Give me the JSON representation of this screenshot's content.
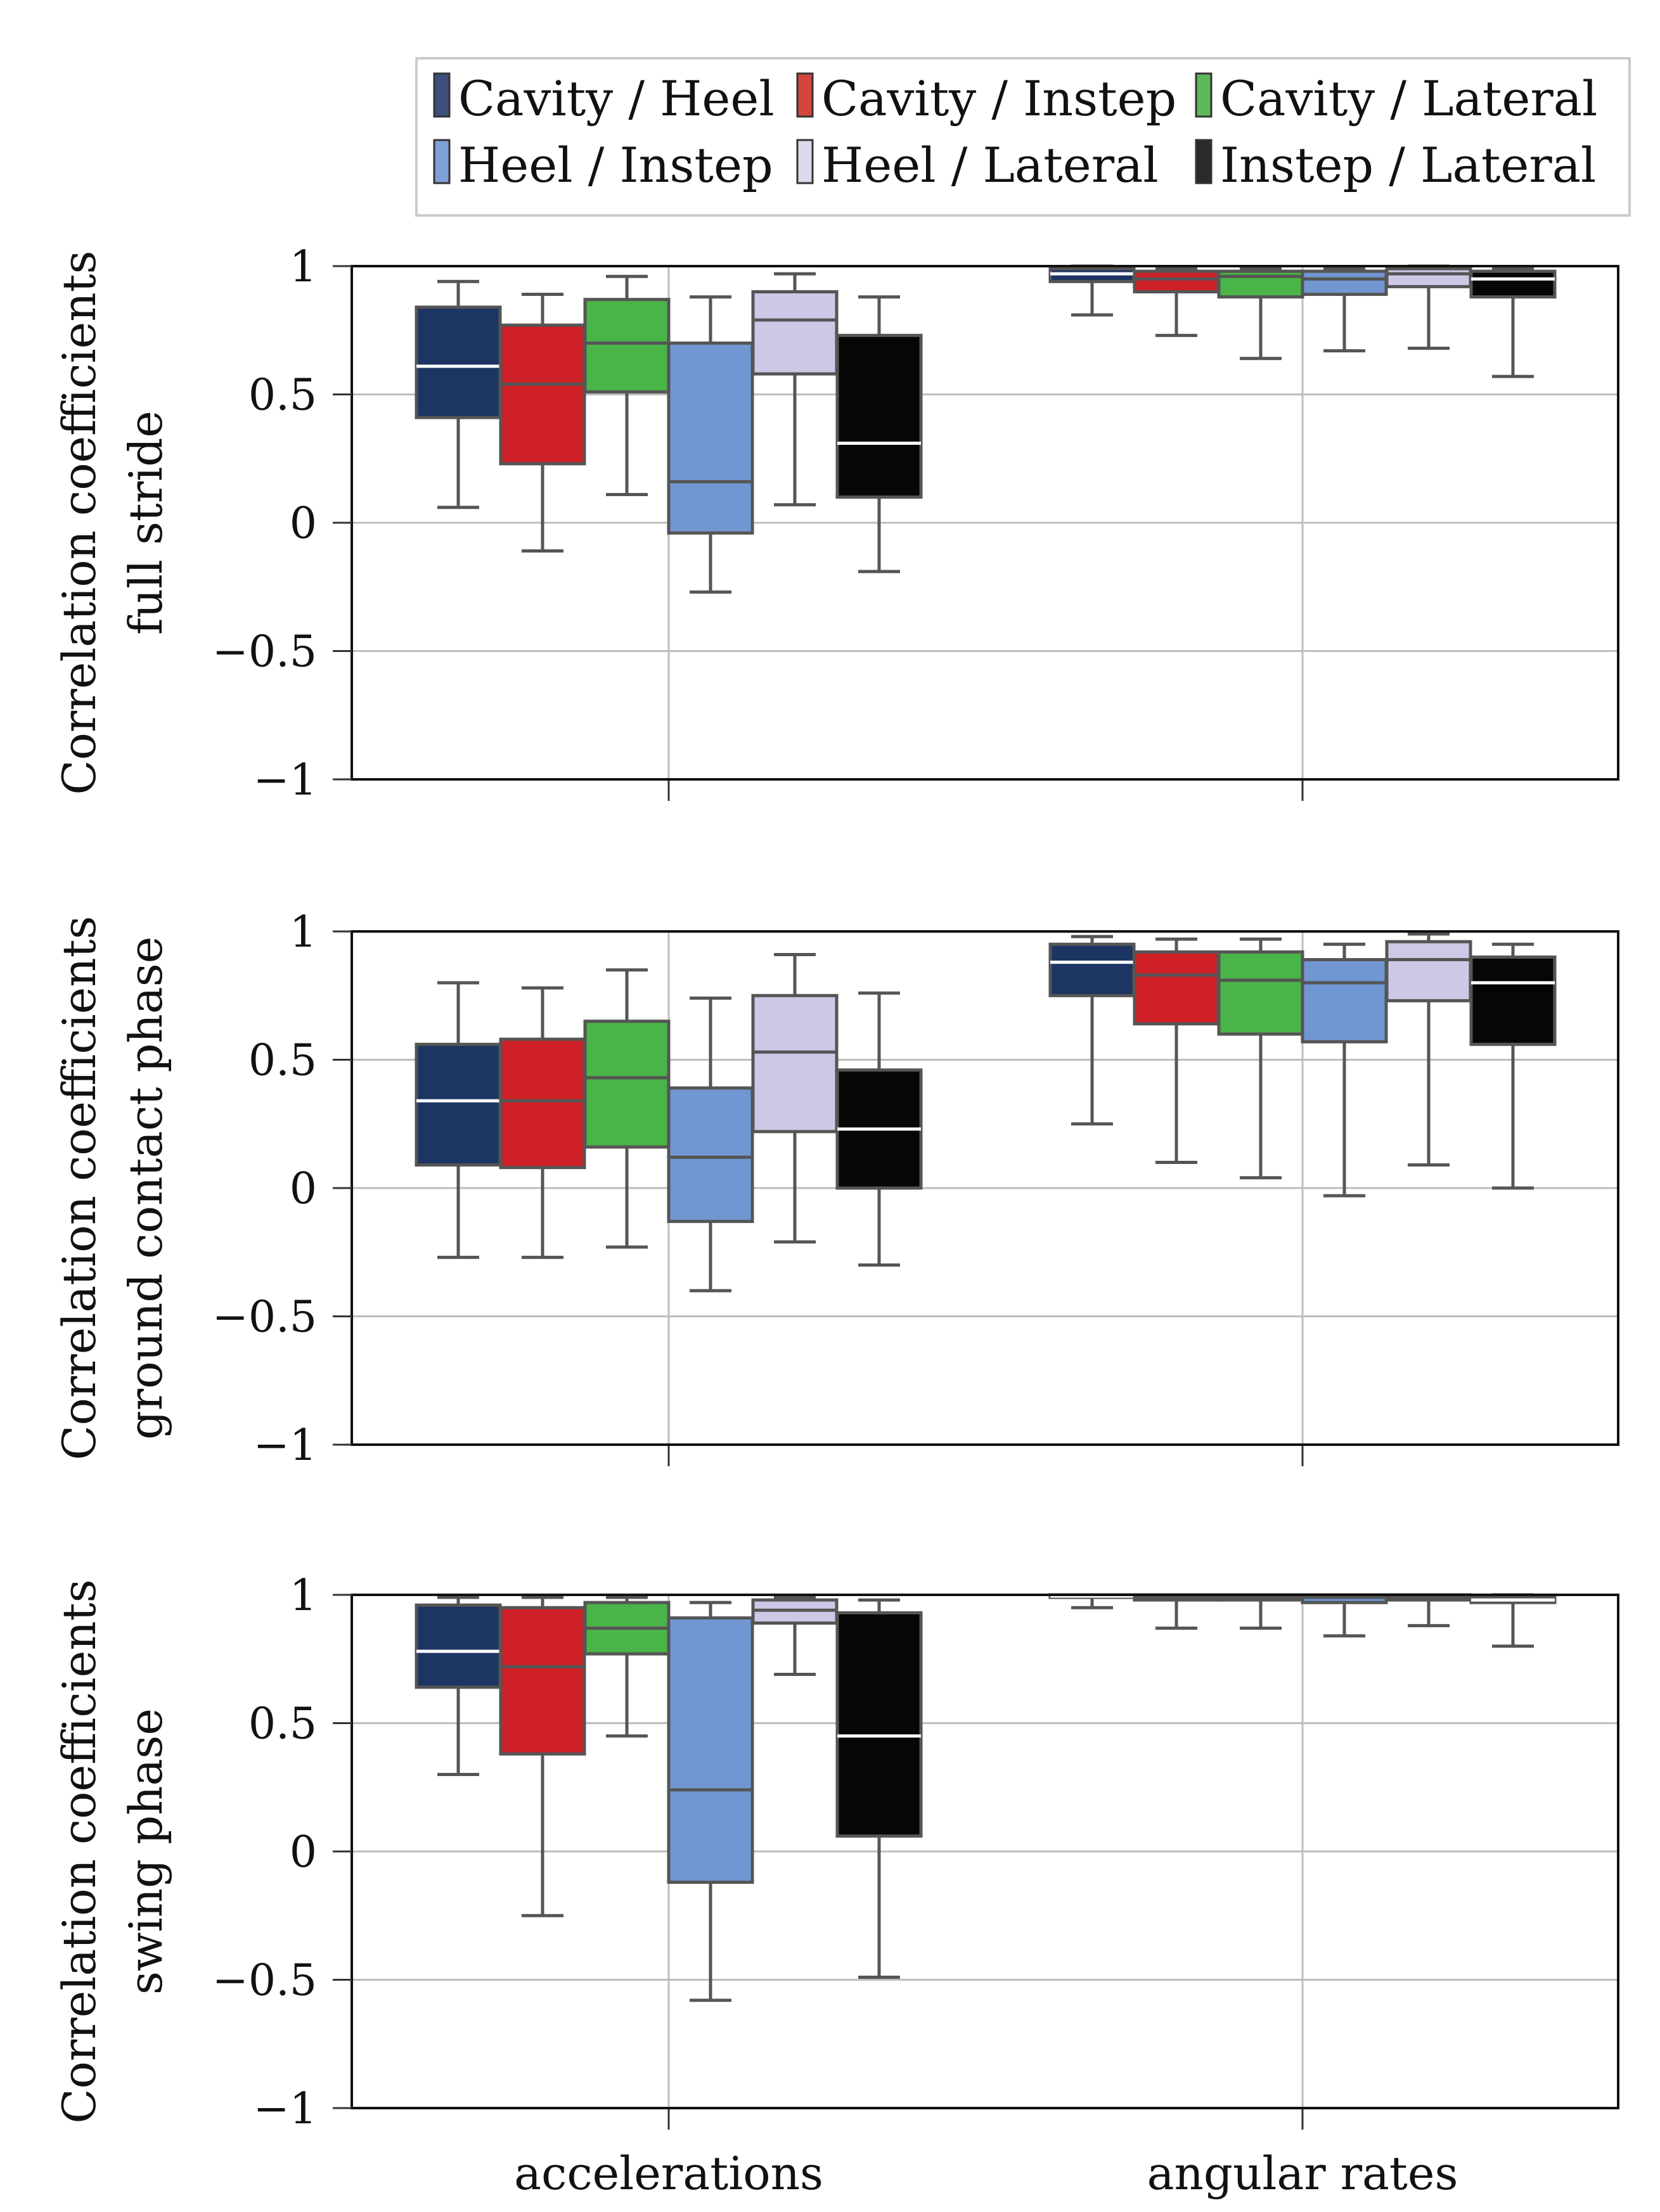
{
  "chart_data": {
    "type": "boxplot",
    "categories": [
      "accelerations",
      "angular rates"
    ],
    "y_ticks": [
      "1",
      "0.5",
      "0",
      "−0.5",
      "−1"
    ],
    "y_tick_values": [
      1,
      0.5,
      0,
      -0.5,
      -1
    ],
    "ylim": [
      -1,
      1
    ],
    "grid": true,
    "legend_position": "top",
    "series": [
      {
        "name": "Cavity / Heel",
        "color": "#1c3563",
        "legend_color": "#3d4f7a",
        "median_color": "#ffffff"
      },
      {
        "name": "Cavity / Instep",
        "color": "#cf2027",
        "legend_color": "#d4453c",
        "median_color": "#555555"
      },
      {
        "name": "Cavity / Lateral",
        "color": "#49b447",
        "legend_color": "#5db85a",
        "median_color": "#555555"
      },
      {
        "name": "Heel / Instep",
        "color": "#7197d2",
        "legend_color": "#7f9fd8",
        "median_color": "#555555"
      },
      {
        "name": "Heel / Lateral",
        "color": "#ccc9e6",
        "legend_color": "#dcd9ef",
        "median_color": "#555555"
      },
      {
        "name": "Instep / Lateral",
        "color": "#060606",
        "legend_color": "#2a2a2a",
        "median_color": "#ffffff"
      }
    ],
    "panels": [
      {
        "ylabel_lines": [
          "Correlation coefficients",
          "full stride"
        ],
        "boxes": [
          [
            {
              "whislo": 0.06,
              "q1": 0.41,
              "med": 0.61,
              "q3": 0.84,
              "whishi": 0.94
            },
            {
              "whislo": -0.11,
              "q1": 0.23,
              "med": 0.54,
              "q3": 0.77,
              "whishi": 0.89
            },
            {
              "whislo": 0.11,
              "q1": 0.51,
              "med": 0.7,
              "q3": 0.87,
              "whishi": 0.96
            },
            {
              "whislo": -0.27,
              "q1": -0.04,
              "med": 0.16,
              "q3": 0.7,
              "whishi": 0.88
            },
            {
              "whislo": 0.07,
              "q1": 0.58,
              "med": 0.79,
              "q3": 0.9,
              "whishi": 0.97
            },
            {
              "whislo": -0.19,
              "q1": 0.1,
              "med": 0.31,
              "q3": 0.73,
              "whishi": 0.88
            }
          ],
          [
            {
              "whislo": 0.81,
              "q1": 0.94,
              "med": 0.97,
              "q3": 0.99,
              "whishi": 1.0
            },
            {
              "whislo": 0.73,
              "q1": 0.9,
              "med": 0.95,
              "q3": 0.98,
              "whishi": 0.99
            },
            {
              "whislo": 0.64,
              "q1": 0.88,
              "med": 0.96,
              "q3": 0.98,
              "whishi": 0.99
            },
            {
              "whislo": 0.67,
              "q1": 0.89,
              "med": 0.95,
              "q3": 0.98,
              "whishi": 0.99
            },
            {
              "whislo": 0.68,
              "q1": 0.92,
              "med": 0.97,
              "q3": 0.99,
              "whishi": 1.0
            },
            {
              "whislo": 0.57,
              "q1": 0.88,
              "med": 0.95,
              "q3": 0.98,
              "whishi": 0.99
            }
          ]
        ]
      },
      {
        "ylabel_lines": [
          "Correlation coefficients",
          "ground contact phase"
        ],
        "boxes": [
          [
            {
              "whislo": -0.27,
              "q1": 0.09,
              "med": 0.34,
              "q3": 0.56,
              "whishi": 0.8
            },
            {
              "whislo": -0.27,
              "q1": 0.08,
              "med": 0.34,
              "q3": 0.58,
              "whishi": 0.78
            },
            {
              "whislo": -0.23,
              "q1": 0.16,
              "med": 0.43,
              "q3": 0.65,
              "whishi": 0.85
            },
            {
              "whislo": -0.4,
              "q1": -0.13,
              "med": 0.12,
              "q3": 0.39,
              "whishi": 0.74
            },
            {
              "whislo": -0.21,
              "q1": 0.22,
              "med": 0.53,
              "q3": 0.75,
              "whishi": 0.91
            },
            {
              "whislo": -0.3,
              "q1": 0.0,
              "med": 0.23,
              "q3": 0.46,
              "whishi": 0.76
            }
          ],
          [
            {
              "whislo": 0.25,
              "q1": 0.75,
              "med": 0.88,
              "q3": 0.95,
              "whishi": 0.98
            },
            {
              "whislo": 0.1,
              "q1": 0.64,
              "med": 0.83,
              "q3": 0.92,
              "whishi": 0.97
            },
            {
              "whislo": 0.04,
              "q1": 0.6,
              "med": 0.81,
              "q3": 0.92,
              "whishi": 0.97
            },
            {
              "whislo": -0.03,
              "q1": 0.57,
              "med": 0.8,
              "q3": 0.89,
              "whishi": 0.95
            },
            {
              "whislo": 0.09,
              "q1": 0.73,
              "med": 0.89,
              "q3": 0.96,
              "whishi": 0.99
            },
            {
              "whislo": 0.0,
              "q1": 0.56,
              "med": 0.8,
              "q3": 0.9,
              "whishi": 0.95
            }
          ]
        ]
      },
      {
        "ylabel_lines": [
          "Correlation coefficients",
          "swing phase"
        ],
        "boxes": [
          [
            {
              "whislo": 0.3,
              "q1": 0.64,
              "med": 0.78,
              "q3": 0.96,
              "whishi": 0.99
            },
            {
              "whislo": -0.25,
              "q1": 0.38,
              "med": 0.72,
              "q3": 0.95,
              "whishi": 0.99
            },
            {
              "whislo": 0.45,
              "q1": 0.77,
              "med": 0.87,
              "q3": 0.97,
              "whishi": 0.99
            },
            {
              "whislo": -0.58,
              "q1": -0.12,
              "med": 0.24,
              "q3": 0.91,
              "whishi": 0.97
            },
            {
              "whislo": 0.69,
              "q1": 0.89,
              "med": 0.94,
              "q3": 0.98,
              "whishi": 0.99
            },
            {
              "whislo": -0.49,
              "q1": 0.06,
              "med": 0.45,
              "q3": 0.93,
              "whishi": 0.98
            }
          ],
          [
            {
              "whislo": 0.95,
              "q1": 0.99,
              "med": 0.995,
              "q3": 1.0,
              "whishi": 1.0
            },
            {
              "whislo": 0.87,
              "q1": 0.98,
              "med": 0.99,
              "q3": 1.0,
              "whishi": 1.0
            },
            {
              "whislo": 0.87,
              "q1": 0.98,
              "med": 0.99,
              "q3": 1.0,
              "whishi": 1.0
            },
            {
              "whislo": 0.84,
              "q1": 0.97,
              "med": 0.99,
              "q3": 1.0,
              "whishi": 1.0
            },
            {
              "whislo": 0.88,
              "q1": 0.98,
              "med": 0.99,
              "q3": 1.0,
              "whishi": 1.0
            },
            {
              "whislo": 0.8,
              "q1": 0.97,
              "med": 0.98,
              "q3": 0.99,
              "whishi": 1.0
            }
          ]
        ]
      }
    ]
  }
}
